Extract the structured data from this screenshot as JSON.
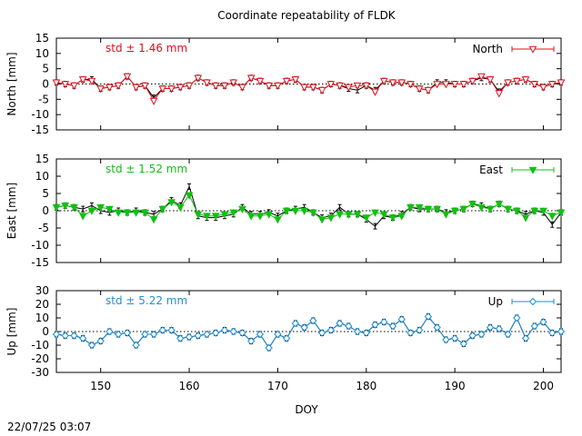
{
  "title": "Coordinate repeatability of FLDK",
  "timestamp": "22/07/25 03:07",
  "chart_data": [
    {
      "type": "scatter",
      "name": "north",
      "ylabel": "North [mm]",
      "legend": "North",
      "std_label": "std ± 1.46 mm",
      "color": "#e0101c",
      "marker": "triangle-down-open",
      "xlim": [
        145,
        202
      ],
      "ylim": [
        -15,
        15
      ],
      "yticks": [
        -15,
        -10,
        -5,
        0,
        5,
        10,
        15
      ],
      "x": [
        145,
        146,
        147,
        148,
        149,
        150,
        151,
        152,
        153,
        154,
        155,
        156,
        157,
        158,
        159,
        160,
        161,
        162,
        163,
        164,
        165,
        166,
        167,
        168,
        169,
        170,
        171,
        172,
        173,
        174,
        175,
        176,
        177,
        178,
        179,
        180,
        181,
        182,
        183,
        184,
        185,
        186,
        187,
        188,
        189,
        190,
        191,
        192,
        193,
        194,
        195,
        196,
        197,
        198,
        199,
        200,
        201,
        202
      ],
      "values": [
        0.5,
        0,
        -0.5,
        1.5,
        1,
        -1.5,
        -1,
        -0.5,
        2.5,
        -1,
        -0.5,
        -5.5,
        -1.5,
        -1.5,
        -1,
        -0.5,
        2,
        0.5,
        -0.5,
        -0.5,
        0.5,
        -1,
        2,
        1,
        -0.5,
        -0.5,
        1,
        1.5,
        -1,
        -1,
        -2,
        0,
        -0.5,
        -1,
        -0.5,
        -0.5,
        -2.5,
        1,
        0.5,
        0.5,
        0,
        -1.5,
        -2,
        0,
        0,
        0,
        0,
        1,
        2.5,
        1.5,
        -3,
        0.5,
        1,
        1.5,
        0,
        -1,
        0,
        0.5
      ],
      "black_values": [
        0.5,
        0,
        -0.5,
        1.5,
        1.5,
        -1.5,
        -1,
        -0.5,
        2.5,
        -1,
        -0.5,
        -4.5,
        -1.5,
        -1.5,
        -1,
        -0.5,
        2,
        0.5,
        -0.5,
        -0.5,
        0.5,
        -1,
        2,
        1,
        -0.5,
        -0.5,
        1,
        1.5,
        -1,
        -1,
        -2,
        0,
        -0.5,
        -1.5,
        -2,
        -0.5,
        -2,
        1,
        0.5,
        0.5,
        0,
        -1.5,
        -2,
        0.5,
        0.5,
        0,
        0,
        1,
        2,
        1.5,
        -2.5,
        0.5,
        1,
        1.5,
        0,
        -1,
        0,
        0.5
      ]
    },
    {
      "type": "scatter",
      "name": "east",
      "ylabel": "East [mm]",
      "legend": "East",
      "std_label": "std ± 1.52 mm",
      "color": "#10c010",
      "marker": "triangle-down-filled",
      "xlim": [
        145,
        202
      ],
      "ylim": [
        -15,
        15
      ],
      "yticks": [
        -15,
        -10,
        -5,
        0,
        5,
        10,
        15
      ],
      "x": [
        145,
        146,
        147,
        148,
        149,
        150,
        151,
        152,
        153,
        154,
        155,
        156,
        157,
        158,
        159,
        160,
        161,
        162,
        163,
        164,
        165,
        166,
        167,
        168,
        169,
        170,
        171,
        172,
        173,
        174,
        175,
        176,
        177,
        178,
        179,
        180,
        181,
        182,
        183,
        184,
        185,
        186,
        187,
        188,
        189,
        190,
        191,
        192,
        193,
        194,
        195,
        196,
        197,
        198,
        199,
        200,
        201,
        202
      ],
      "values": [
        1,
        1.5,
        1,
        -1.5,
        0,
        1,
        0.5,
        -0.5,
        -0.5,
        -0.5,
        -0.5,
        -2.5,
        0.5,
        2.5,
        1,
        4.5,
        -1,
        -1.5,
        -1.5,
        -1,
        -0.5,
        0.5,
        -1.5,
        -1.5,
        -1,
        -2.5,
        0,
        0,
        0,
        -0.5,
        -2.5,
        -2,
        -1,
        -1,
        -1,
        -2,
        -0.5,
        -1,
        -2,
        -1.5,
        1,
        1,
        0.5,
        0.5,
        -1,
        0,
        0.5,
        2,
        1,
        0.5,
        2,
        0.5,
        0,
        -2,
        0,
        0,
        -1.5,
        -0.5
      ],
      "black_values": [
        1,
        1.5,
        1,
        0.5,
        1.5,
        0,
        -0.5,
        0,
        -0.5,
        0,
        -0.5,
        -1,
        0.5,
        3,
        1.5,
        7,
        -1.5,
        -2,
        -2,
        -1.5,
        -1,
        1,
        -1,
        -1,
        -0.5,
        -1.5,
        0,
        0.5,
        1,
        -0.5,
        -2,
        -1.5,
        1,
        -1,
        -1,
        -2.5,
        -4.5,
        -1.5,
        -2,
        -1,
        1,
        0.5,
        0.5,
        0.5,
        -0.5,
        0,
        0.5,
        2,
        1.5,
        0.5,
        2,
        0.5,
        0,
        -1,
        0,
        -0.5,
        -4,
        -0.5
      ]
    },
    {
      "type": "scatter",
      "name": "up",
      "ylabel": "Up [mm]",
      "legend": "Up",
      "std_label": "std ± 5.22 mm",
      "color": "#1e8fd8",
      "marker": "diamond-open",
      "xlim": [
        145,
        202
      ],
      "ylim": [
        -30,
        30
      ],
      "yticks": [
        -30,
        -20,
        -10,
        0,
        10,
        20,
        30
      ],
      "x": [
        145,
        146,
        147,
        148,
        149,
        150,
        151,
        152,
        153,
        154,
        155,
        156,
        157,
        158,
        159,
        160,
        161,
        162,
        163,
        164,
        165,
        166,
        167,
        168,
        169,
        170,
        171,
        172,
        173,
        174,
        175,
        176,
        177,
        178,
        179,
        180,
        181,
        182,
        183,
        184,
        185,
        186,
        187,
        188,
        189,
        190,
        191,
        192,
        193,
        194,
        195,
        196,
        197,
        198,
        199,
        200,
        201,
        202
      ],
      "values": [
        -2,
        -3,
        -3,
        -5,
        -10,
        -7,
        0,
        -2,
        -1,
        -10,
        -2,
        -2,
        1,
        1,
        -5,
        -4,
        -3,
        -2,
        -1,
        1,
        0,
        -1,
        -7,
        -2,
        -12,
        -2,
        -5,
        6,
        3,
        8,
        -1,
        1,
        6,
        4,
        0,
        -1,
        5,
        7,
        4,
        9,
        -1,
        1,
        11,
        3,
        -6,
        -5,
        -9,
        -3,
        -2,
        3,
        2,
        -2,
        10,
        -5,
        4,
        7,
        -1,
        0
      ],
      "black_values": [
        -2,
        -3,
        -3,
        -5,
        -10,
        -7,
        0,
        -2,
        -1,
        -10,
        -2,
        -2,
        1,
        1,
        -5,
        -4,
        -3,
        -2,
        -1,
        1,
        0,
        -1,
        -7,
        -2,
        -12,
        -2,
        -5,
        6,
        3,
        8,
        -1,
        1,
        6,
        4,
        0,
        -1,
        5,
        7,
        4,
        9,
        -1,
        1,
        11,
        3,
        -6,
        -5,
        -9,
        -3,
        -2,
        3,
        2,
        -2,
        10,
        -5,
        4,
        7,
        -1,
        0
      ]
    }
  ],
  "xaxis": {
    "label": "DOY",
    "ticks": [
      150,
      160,
      170,
      180,
      190,
      200
    ]
  }
}
